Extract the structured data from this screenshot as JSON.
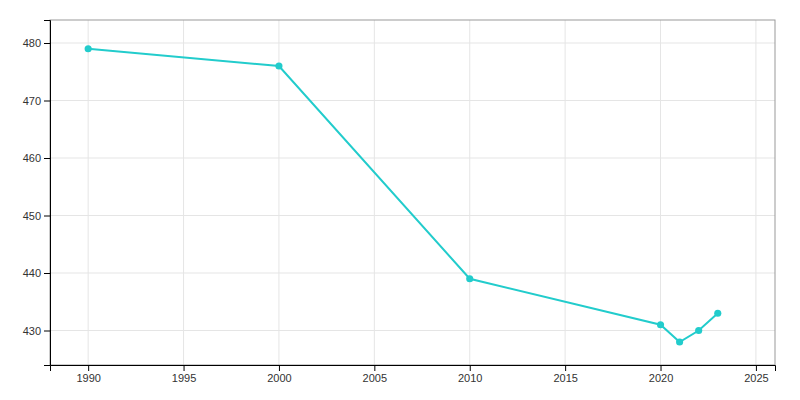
{
  "chart_data": {
    "type": "line",
    "x": [
      1990,
      2000,
      2010,
      2020,
      2021,
      2022,
      2023
    ],
    "values": [
      479,
      476,
      439,
      431,
      428,
      430,
      433
    ],
    "color": "#22CCCC",
    "marker": "circle",
    "xlim": [
      1988,
      2026
    ],
    "xticks": [
      1990,
      1995,
      2000,
      2005,
      2010,
      2015,
      2020,
      2025
    ],
    "ylim": [
      424,
      484
    ],
    "yticks": [
      430,
      440,
      450,
      460,
      470,
      480
    ],
    "grid": true
  }
}
